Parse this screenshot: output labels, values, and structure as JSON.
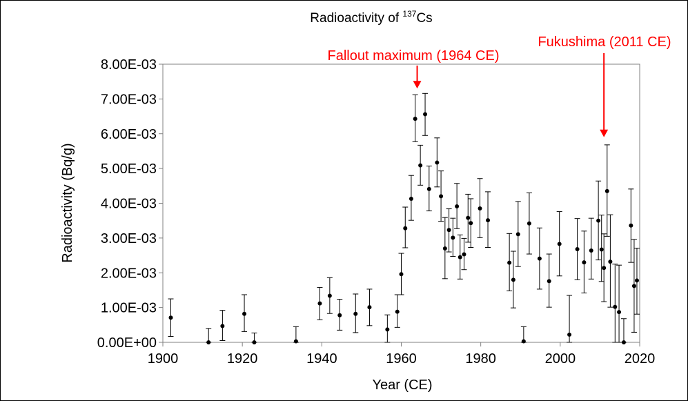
{
  "chart_data": {
    "type": "scatter",
    "title": "Radioactivity of ",
    "title_superscript": "137",
    "title_suffix": "Cs",
    "xlabel": "Year (CE)",
    "ylabel": "Radioactivity (Bq/g)",
    "xlim": [
      1900,
      2020
    ],
    "ylim": [
      0,
      0.008
    ],
    "x_ticks": [
      1900,
      1920,
      1940,
      1960,
      1980,
      2000,
      2020
    ],
    "y_ticks": [
      0,
      0.001,
      0.002,
      0.003,
      0.004,
      0.005,
      0.006,
      0.007,
      0.008
    ],
    "x_tick_labels": [
      "1900",
      "1920",
      "1940",
      "1960",
      "1980",
      "2000",
      "2020"
    ],
    "y_tick_labels": [
      "0.00E+00",
      "1.00E-03",
      "2.00E-03",
      "3.00E-03",
      "4.00E-03",
      "5.00E-03",
      "6.00E-03",
      "7.00E-03",
      "8.00E-03"
    ],
    "grid": false,
    "marker_color": "#000000",
    "annotation_color": "#ff0000",
    "series": [
      {
        "points": [
          {
            "x": 1902.0,
            "y": 0.00071,
            "lo": 0.00017,
            "hi": 0.00125
          },
          {
            "x": 1911.5,
            "y": 0.0,
            "lo": 0.0,
            "hi": 0.0004
          },
          {
            "x": 1915.0,
            "y": 0.00047,
            "lo": 5e-05,
            "hi": 0.00092
          },
          {
            "x": 1920.5,
            "y": 0.00082,
            "lo": 0.00031,
            "hi": 0.00137
          },
          {
            "x": 1923.0,
            "y": 0.0,
            "lo": 0.0,
            "hi": 0.00027
          },
          {
            "x": 1933.5,
            "y": 3e-05,
            "lo": 0.0,
            "hi": 0.00045
          },
          {
            "x": 1939.5,
            "y": 0.00112,
            "lo": 0.00065,
            "hi": 0.00158
          },
          {
            "x": 1942.0,
            "y": 0.00134,
            "lo": 0.00083,
            "hi": 0.00186
          },
          {
            "x": 1944.5,
            "y": 0.00078,
            "lo": 0.00035,
            "hi": 0.00124
          },
          {
            "x": 1948.5,
            "y": 0.00082,
            "lo": 0.00028,
            "hi": 0.00139
          },
          {
            "x": 1952.0,
            "y": 0.00101,
            "lo": 0.00048,
            "hi": 0.00153
          },
          {
            "x": 1956.5,
            "y": 0.00037,
            "lo": 0.0,
            "hi": 0.00079
          },
          {
            "x": 1959.0,
            "y": 0.00088,
            "lo": 0.00043,
            "hi": 0.00137
          },
          {
            "x": 1960.0,
            "y": 0.00196,
            "lo": 0.00137,
            "hi": 0.00256
          },
          {
            "x": 1961.0,
            "y": 0.00328,
            "lo": 0.00272,
            "hi": 0.00389
          },
          {
            "x": 1962.5,
            "y": 0.00413,
            "lo": 0.00351,
            "hi": 0.0048
          },
          {
            "x": 1963.5,
            "y": 0.00643,
            "lo": 0.00577,
            "hi": 0.00712
          },
          {
            "x": 1964.8,
            "y": 0.00509,
            "lo": 0.00452,
            "hi": 0.00567
          },
          {
            "x": 1966.0,
            "y": 0.00656,
            "lo": 0.00595,
            "hi": 0.00716
          },
          {
            "x": 1967.0,
            "y": 0.00441,
            "lo": 0.00378,
            "hi": 0.00507
          },
          {
            "x": 1969.0,
            "y": 0.00517,
            "lo": 0.00447,
            "hi": 0.00588
          },
          {
            "x": 1970.0,
            "y": 0.0042,
            "lo": 0.00348,
            "hi": 0.00493
          },
          {
            "x": 1971.0,
            "y": 0.0027,
            "lo": 0.00183,
            "hi": 0.00359
          },
          {
            "x": 1972.0,
            "y": 0.00323,
            "lo": 0.0026,
            "hi": 0.00384
          },
          {
            "x": 1973.0,
            "y": 0.00301,
            "lo": 0.00247,
            "hi": 0.00357
          },
          {
            "x": 1974.0,
            "y": 0.00391,
            "lo": 0.00327,
            "hi": 0.00457
          },
          {
            "x": 1974.8,
            "y": 0.00245,
            "lo": 0.00182,
            "hi": 0.00309
          },
          {
            "x": 1975.8,
            "y": 0.00253,
            "lo": 0.00209,
            "hi": 0.00299
          },
          {
            "x": 1976.8,
            "y": 0.00358,
            "lo": 0.00288,
            "hi": 0.00426
          },
          {
            "x": 1977.5,
            "y": 0.00343,
            "lo": 0.00273,
            "hi": 0.00413
          },
          {
            "x": 1979.8,
            "y": 0.00385,
            "lo": 0.00301,
            "hi": 0.00471
          },
          {
            "x": 1981.8,
            "y": 0.00351,
            "lo": 0.00273,
            "hi": 0.00433
          },
          {
            "x": 1987.2,
            "y": 0.00229,
            "lo": 0.00148,
            "hi": 0.00313
          },
          {
            "x": 1988.2,
            "y": 0.0018,
            "lo": 0.00099,
            "hi": 0.00262
          },
          {
            "x": 1989.4,
            "y": 0.00311,
            "lo": 0.00218,
            "hi": 0.00405
          },
          {
            "x": 1990.8,
            "y": 3e-05,
            "lo": 0.0,
            "hi": 0.00045
          },
          {
            "x": 1992.2,
            "y": 0.00342,
            "lo": 0.00254,
            "hi": 0.0043
          },
          {
            "x": 1994.8,
            "y": 0.00241,
            "lo": 0.00153,
            "hi": 0.00329
          },
          {
            "x": 1997.2,
            "y": 0.00176,
            "lo": 0.00101,
            "hi": 0.00254
          },
          {
            "x": 1999.8,
            "y": 0.00283,
            "lo": 0.00191,
            "hi": 0.00376
          },
          {
            "x": 2002.3,
            "y": 0.00022,
            "lo": 0.0,
            "hi": 0.00135
          },
          {
            "x": 2004.3,
            "y": 0.00268,
            "lo": 0.0018,
            "hi": 0.00356
          },
          {
            "x": 2006.0,
            "y": 0.0023,
            "lo": 0.00142,
            "hi": 0.0032
          },
          {
            "x": 2007.8,
            "y": 0.00264,
            "lo": 0.00182,
            "hi": 0.00357
          },
          {
            "x": 2009.6,
            "y": 0.0035,
            "lo": 0.00237,
            "hi": 0.00464
          },
          {
            "x": 2010.4,
            "y": 0.00267,
            "lo": 0.00175,
            "hi": 0.00366
          },
          {
            "x": 2011.0,
            "y": 0.00214,
            "lo": 0.00117,
            "hi": 0.00312
          },
          {
            "x": 2011.8,
            "y": 0.00435,
            "lo": 0.00305,
            "hi": 0.00568
          },
          {
            "x": 2012.6,
            "y": 0.00232,
            "lo": 0.00101,
            "hi": 0.00367
          },
          {
            "x": 2013.8,
            "y": 0.00102,
            "lo": 0.0,
            "hi": 0.00225
          },
          {
            "x": 2014.8,
            "y": 0.00087,
            "lo": 0.0,
            "hi": 0.00222
          },
          {
            "x": 2016.0,
            "y": 0.0,
            "lo": 0.0,
            "hi": 0.00068
          },
          {
            "x": 2017.8,
            "y": 0.00336,
            "lo": 0.0023,
            "hi": 0.00441
          },
          {
            "x": 2018.6,
            "y": 0.00162,
            "lo": 0.00029,
            "hi": 0.00296
          },
          {
            "x": 2019.3,
            "y": 0.00178,
            "lo": 0.00081,
            "hi": 0.00271
          }
        ]
      }
    ],
    "annotations": [
      {
        "text": "Fallout maximum (1964 CE)",
        "x": 1964.0,
        "arrow_tip_y": 0.0073
      },
      {
        "text": "Fukushima (2011 CE)",
        "x": 2011.0,
        "arrow_tip_y": 0.0059
      }
    ]
  }
}
